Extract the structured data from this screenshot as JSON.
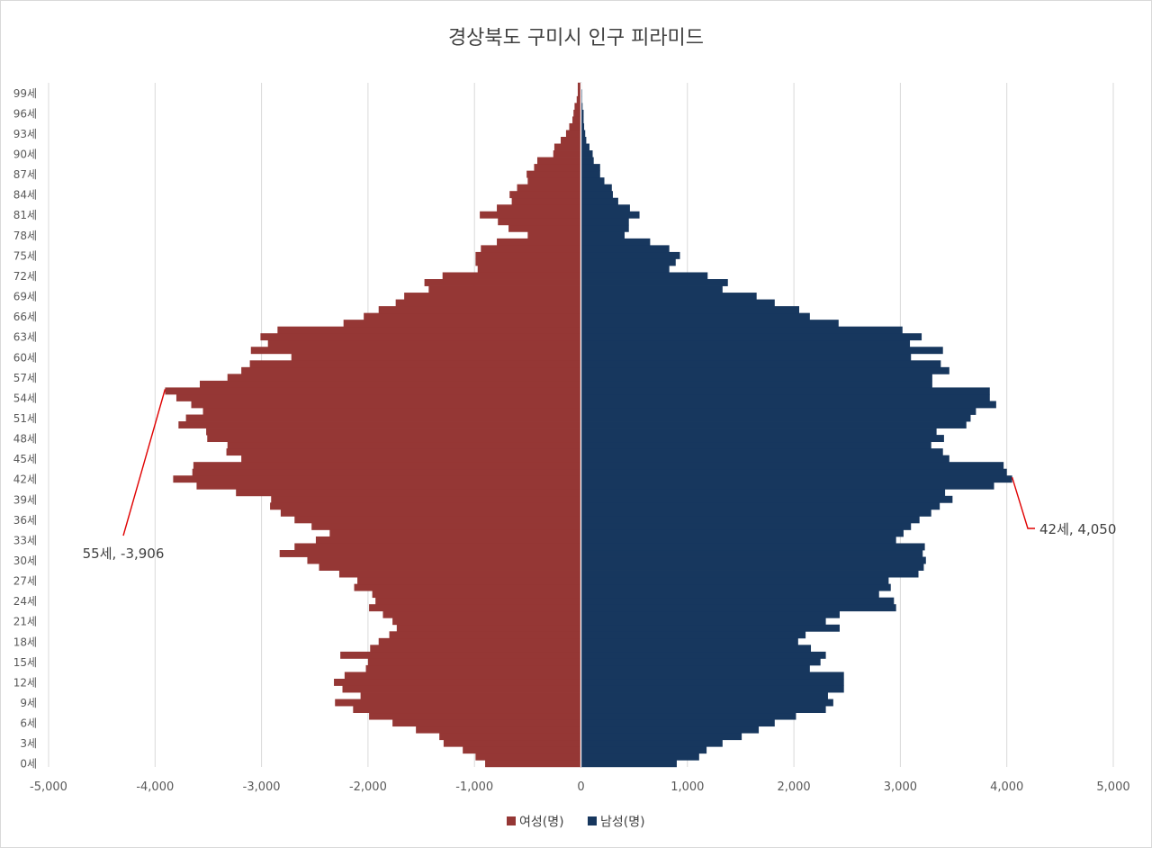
{
  "chart_data": {
    "type": "bar",
    "orientation": "horizontal",
    "title": "경상북도 구미시 인구 피라미드",
    "xlabel": "",
    "ylabel": "",
    "xlim": [
      -5000,
      5000
    ],
    "grid": true,
    "legend": "bottom",
    "x_ticks": [
      -5000,
      -4000,
      -3000,
      -2000,
      -1000,
      0,
      1000,
      2000,
      3000,
      4000,
      5000
    ],
    "x_tick_labels": [
      "-5,000",
      "-4,000",
      "-3,000",
      "-2,000",
      "-1,000",
      "0",
      "1,000",
      "2,000",
      "3,000",
      "4,000",
      "5,000"
    ],
    "y_tick_ages": [
      0,
      3,
      6,
      9,
      12,
      15,
      18,
      21,
      24,
      27,
      30,
      33,
      36,
      39,
      42,
      45,
      48,
      51,
      54,
      57,
      60,
      63,
      66,
      69,
      72,
      75,
      78,
      81,
      84,
      87,
      90,
      93,
      96,
      99
    ],
    "y_tick_labels": [
      "0세",
      "3세",
      "6세",
      "9세",
      "12세",
      "15세",
      "18세",
      "21세",
      "24세",
      "27세",
      "30세",
      "33세",
      "36세",
      "39세",
      "42세",
      "45세",
      "48세",
      "51세",
      "54세",
      "57세",
      "60세",
      "63세",
      "66세",
      "69세",
      "72세",
      "75세",
      "78세",
      "81세",
      "84세",
      "87세",
      "90세",
      "93세",
      "96세",
      "99세"
    ],
    "ages": [
      0,
      1,
      2,
      3,
      4,
      5,
      6,
      7,
      8,
      9,
      10,
      11,
      12,
      13,
      14,
      15,
      16,
      17,
      18,
      19,
      20,
      21,
      22,
      23,
      24,
      25,
      26,
      27,
      28,
      29,
      30,
      31,
      32,
      33,
      34,
      35,
      36,
      37,
      38,
      39,
      40,
      41,
      42,
      43,
      44,
      45,
      46,
      47,
      48,
      49,
      50,
      51,
      52,
      53,
      54,
      55,
      56,
      57,
      58,
      59,
      60,
      61,
      62,
      63,
      64,
      65,
      66,
      67,
      68,
      69,
      70,
      71,
      72,
      73,
      74,
      75,
      76,
      77,
      78,
      79,
      80,
      81,
      82,
      83,
      84,
      85,
      86,
      87,
      88,
      89,
      90,
      91,
      92,
      93,
      94,
      95,
      96,
      97,
      98,
      99,
      100
    ],
    "series": [
      {
        "name": "여성(명)",
        "color": "#953735",
        "values": [
          -900,
          -990,
          -1110,
          -1290,
          -1330,
          -1550,
          -1770,
          -1990,
          -2140,
          -2310,
          -2070,
          -2240,
          -2320,
          -2220,
          -2020,
          -2000,
          -2260,
          -1980,
          -1900,
          -1800,
          -1730,
          -1770,
          -1860,
          -1990,
          -1930,
          -1960,
          -2130,
          -2100,
          -2270,
          -2460,
          -2570,
          -2830,
          -2690,
          -2490,
          -2360,
          -2530,
          -2690,
          -2820,
          -2920,
          -2910,
          -3240,
          -3610,
          -3830,
          -3650,
          -3640,
          -3190,
          -3330,
          -3320,
          -3510,
          -3520,
          -3780,
          -3710,
          -3550,
          -3660,
          -3800,
          -3906,
          -3580,
          -3320,
          -3190,
          -3110,
          -2720,
          -3100,
          -2940,
          -3010,
          -2850,
          -2230,
          -2040,
          -1900,
          -1740,
          -1660,
          -1430,
          -1470,
          -1300,
          -970,
          -990,
          -990,
          -940,
          -790,
          -500,
          -680,
          -780,
          -950,
          -790,
          -650,
          -670,
          -600,
          -500,
          -510,
          -440,
          -410,
          -260,
          -250,
          -190,
          -140,
          -110,
          -80,
          -70,
          -60,
          -40,
          -30,
          -30
        ]
      },
      {
        "name": "남성(명)",
        "color": "#17375E",
        "values": [
          900,
          1110,
          1180,
          1330,
          1510,
          1670,
          1820,
          2020,
          2300,
          2370,
          2320,
          2470,
          2470,
          2470,
          2150,
          2250,
          2300,
          2160,
          2040,
          2110,
          2430,
          2300,
          2430,
          2960,
          2940,
          2800,
          2910,
          2890,
          3170,
          3220,
          3240,
          3210,
          3230,
          2960,
          3030,
          3100,
          3180,
          3290,
          3370,
          3490,
          3420,
          3880,
          4050,
          4000,
          3970,
          3460,
          3400,
          3290,
          3410,
          3340,
          3620,
          3660,
          3710,
          3900,
          3840,
          3840,
          3300,
          3300,
          3460,
          3380,
          3100,
          3400,
          3090,
          3200,
          3020,
          2420,
          2150,
          2050,
          1820,
          1650,
          1330,
          1380,
          1190,
          830,
          890,
          930,
          830,
          650,
          410,
          450,
          450,
          550,
          460,
          350,
          300,
          290,
          220,
          180,
          180,
          120,
          110,
          80,
          50,
          40,
          30,
          25,
          25,
          15,
          10,
          10,
          5
        ]
      }
    ],
    "annotations": [
      {
        "label": "55세, -3,906",
        "age": 55,
        "value": -3906
      },
      {
        "label": "42세, 4,050",
        "age": 42,
        "value": 4050
      }
    ],
    "annotation_line_color": "#E00000",
    "separator_color": "#FFFFFF"
  }
}
